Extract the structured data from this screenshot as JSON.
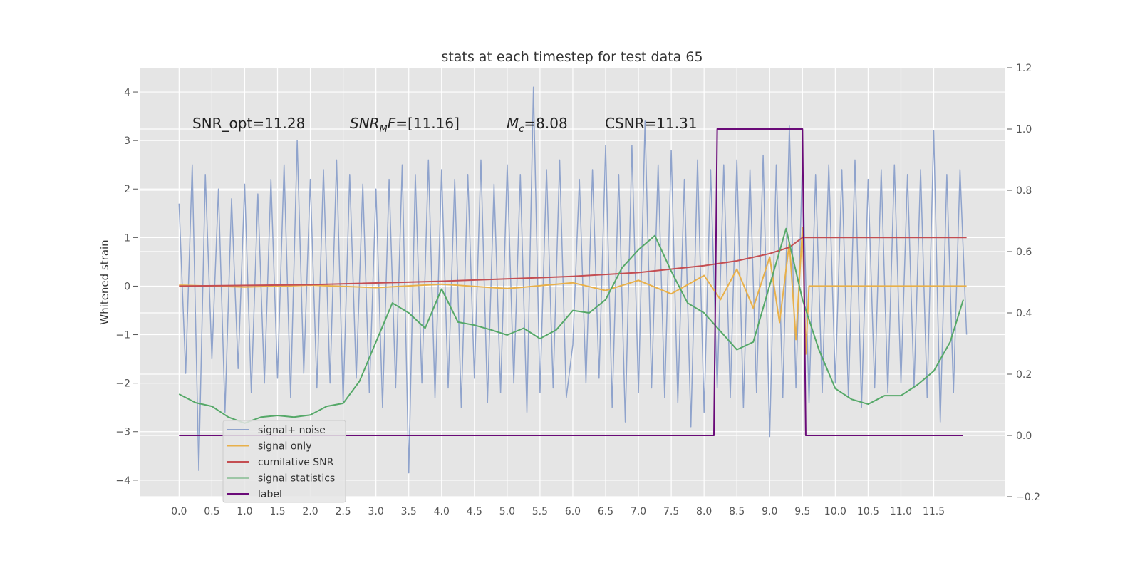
{
  "chart_data": {
    "type": "line",
    "title": "stats at each timestep for test data 65",
    "ylabel": "Whitened strain",
    "annotations": [
      [
        "SNR_opt=11.28"
      ],
      [
        "SNR",
        "M",
        "F",
        "=[11.16]"
      ],
      [
        "M",
        "c",
        "=8.08"
      ],
      [
        "CSNR=11.31"
      ]
    ],
    "xlim": [
      -0.59,
      12.58
    ],
    "ylim": [
      -4.34,
      4.5
    ],
    "y2lim": [
      -0.2,
      1.2
    ],
    "xticks": [
      {
        "value": 0,
        "label": "0.0"
      },
      0.5,
      {
        "value": 1,
        "label": "1.0"
      },
      1.5,
      {
        "value": 2,
        "label": "2.0"
      },
      2.5,
      {
        "value": 3,
        "label": "3.0"
      },
      3.5,
      {
        "value": 4,
        "label": "4.0"
      },
      4.5,
      {
        "value": 5,
        "label": "5.0"
      },
      5.5,
      {
        "value": 6,
        "label": "6.0"
      },
      6.5,
      {
        "value": 7,
        "label": "7.0"
      },
      7.5,
      {
        "value": 8,
        "label": "8.0"
      },
      8.5,
      {
        "value": 9,
        "label": "9.0"
      },
      9.5,
      {
        "value": 10,
        "label": "10.0"
      },
      10.5,
      {
        "value": 11,
        "label": "11.0"
      },
      11.5
    ],
    "yticks": [
      {
        "value": -4,
        "label": "−4"
      },
      {
        "value": -3,
        "label": "−3"
      },
      {
        "value": -2,
        "label": "−2"
      },
      {
        "value": -1,
        "label": "−1"
      },
      0,
      1,
      2,
      3,
      4
    ],
    "y2ticks": [
      {
        "value": -0.2,
        "label": "−0.2"
      },
      {
        "value": 0,
        "label": "0.0"
      },
      0.2,
      0.4,
      0.6,
      0.8,
      {
        "value": 1,
        "label": "1.0"
      },
      1.2
    ],
    "grid": true,
    "series": [
      {
        "name": "signal+ noise",
        "color": "#8fa3cc",
        "x": [
          0,
          0.1,
          0.2,
          0.3,
          0.4,
          0.5,
          0.6,
          0.7,
          0.8,
          0.9,
          1,
          1.1,
          1.2,
          1.3,
          1.4,
          1.5,
          1.6,
          1.7,
          1.8,
          1.9,
          2,
          2.1,
          2.2,
          2.3,
          2.4,
          2.5,
          2.6,
          2.7,
          2.8,
          2.9,
          3,
          3.1,
          3.2,
          3.3,
          3.4,
          3.5,
          3.6,
          3.7,
          3.8,
          3.9,
          4,
          4.1,
          4.2,
          4.3,
          4.4,
          4.5,
          4.6,
          4.7,
          4.8,
          4.9,
          5,
          5.1,
          5.2,
          5.3,
          5.4,
          5.5,
          5.6,
          5.7,
          5.8,
          5.9,
          6,
          6.1,
          6.2,
          6.3,
          6.4,
          6.5,
          6.6,
          6.7,
          6.8,
          6.9,
          7,
          7.1,
          7.2,
          7.3,
          7.4,
          7.5,
          7.6,
          7.7,
          7.8,
          7.9,
          8,
          8.1,
          8.2,
          8.3,
          8.4,
          8.5,
          8.6,
          8.7,
          8.8,
          8.9,
          9,
          9.1,
          9.2,
          9.3,
          9.4,
          9.5,
          9.6,
          9.7,
          9.8,
          9.9,
          10,
          10.1,
          10.2,
          10.3,
          10.4,
          10.5,
          10.6,
          10.7,
          10.8,
          10.9,
          11,
          11.1,
          11.2,
          11.3,
          11.4,
          11.5,
          11.6,
          11.7,
          11.8,
          11.9,
          12
        ],
        "values": [
          1.7,
          -1.8,
          2.5,
          -3.8,
          2.3,
          -1.5,
          2.0,
          -2.6,
          1.8,
          -1.7,
          2.1,
          -2.2,
          1.9,
          -2.0,
          2.2,
          -1.9,
          2.5,
          -2.3,
          3.0,
          -1.8,
          2.2,
          -2.1,
          2.4,
          -2.0,
          2.6,
          -2.4,
          2.3,
          -1.9,
          2.1,
          -2.2,
          2.0,
          -2.5,
          2.2,
          -2.1,
          2.5,
          -3.85,
          2.3,
          -2.0,
          2.6,
          -2.3,
          2.4,
          -2.1,
          2.2,
          -2.5,
          2.3,
          -1.9,
          2.6,
          -2.4,
          2.1,
          -2.2,
          2.5,
          -2.0,
          2.3,
          -2.6,
          4.1,
          -2.2,
          2.4,
          -2.1,
          2.6,
          -2.3,
          -1.2,
          2.2,
          -2.0,
          2.4,
          -1.9,
          2.9,
          -2.5,
          2.3,
          -2.8,
          2.9,
          -2.2,
          3.4,
          -2.1,
          2.5,
          -2.3,
          2.8,
          -2.4,
          2.2,
          -2.9,
          2.6,
          -2.6,
          2.4,
          -2.1,
          2.5,
          -2.3,
          2.6,
          -2.5,
          2.4,
          -2.2,
          2.7,
          -3.1,
          2.5,
          -2.3,
          3.3,
          -2.1,
          2.6,
          -2.4,
          2.3,
          -2.2,
          2.5,
          -2.0,
          2.4,
          -2.3,
          2.6,
          -2.5,
          2.2,
          -2.1,
          2.4,
          -2.2,
          2.5,
          -2.0,
          2.3,
          -2.1,
          2.4,
          -2.3,
          3.2,
          -2.8,
          2.3,
          -2.2,
          2.4,
          -1.0
        ]
      },
      {
        "name": "signal only",
        "color": "#e8b04a",
        "x": [
          0,
          1,
          2,
          3,
          4,
          5,
          6,
          6.5,
          7,
          7.5,
          8,
          8.25,
          8.5,
          8.75,
          9,
          9.15,
          9.3,
          9.4,
          9.5,
          9.55,
          9.6,
          12
        ],
        "values": [
          0.02,
          -0.02,
          0.02,
          -0.03,
          0.04,
          -0.05,
          0.07,
          -0.09,
          0.12,
          -0.16,
          0.22,
          -0.28,
          0.35,
          -0.45,
          0.6,
          -0.75,
          0.9,
          -1.1,
          1.2,
          -1.4,
          0,
          0
        ]
      },
      {
        "name": "cumilative SNR",
        "color": "#c44e52",
        "x": [
          0,
          2,
          4,
          6,
          7,
          8,
          8.5,
          9,
          9.3,
          9.5,
          12
        ],
        "values": [
          0,
          0.03,
          0.1,
          0.2,
          0.28,
          0.42,
          0.52,
          0.67,
          0.8,
          1.0,
          1.0
        ]
      },
      {
        "name": "signal statistics",
        "color": "#55a868",
        "axis": "y2",
        "x": [
          0,
          0.25,
          0.5,
          0.75,
          1,
          1.25,
          1.5,
          1.75,
          2,
          2.25,
          2.5,
          2.75,
          3,
          3.25,
          3.5,
          3.75,
          4,
          4.25,
          4.5,
          4.75,
          5,
          5.25,
          5.5,
          5.75,
          6,
          6.25,
          6.5,
          6.75,
          7,
          7.25,
          7.5,
          7.75,
          8,
          8.25,
          8.5,
          8.75,
          9,
          9.25,
          9.5,
          9.75,
          10,
          10.25,
          10.5,
          10.75,
          11,
          11.25,
          11.5,
          11.75,
          11.95
        ],
        "values": [
          0.135,
          0.107,
          0.095,
          0.06,
          0.04,
          0.06,
          0.065,
          0.06,
          0.067,
          0.095,
          0.105,
          0.177,
          0.305,
          0.432,
          0.4,
          0.35,
          0.478,
          0.37,
          0.36,
          0.345,
          0.328,
          0.35,
          0.316,
          0.345,
          0.408,
          0.4,
          0.443,
          0.547,
          0.606,
          0.652,
          0.536,
          0.432,
          0.4,
          0.34,
          0.28,
          0.305,
          0.49,
          0.675,
          0.443,
          0.28,
          0.153,
          0.118,
          0.102,
          0.13,
          0.13,
          0.165,
          0.21,
          0.305,
          0.443
        ]
      },
      {
        "name": "label",
        "color": "#6a0a78",
        "axis": "y2",
        "x": [
          0,
          8.15,
          8.2,
          9.5,
          9.55,
          11.95
        ],
        "values": [
          0,
          0,
          1,
          1,
          0,
          0
        ]
      }
    ]
  }
}
